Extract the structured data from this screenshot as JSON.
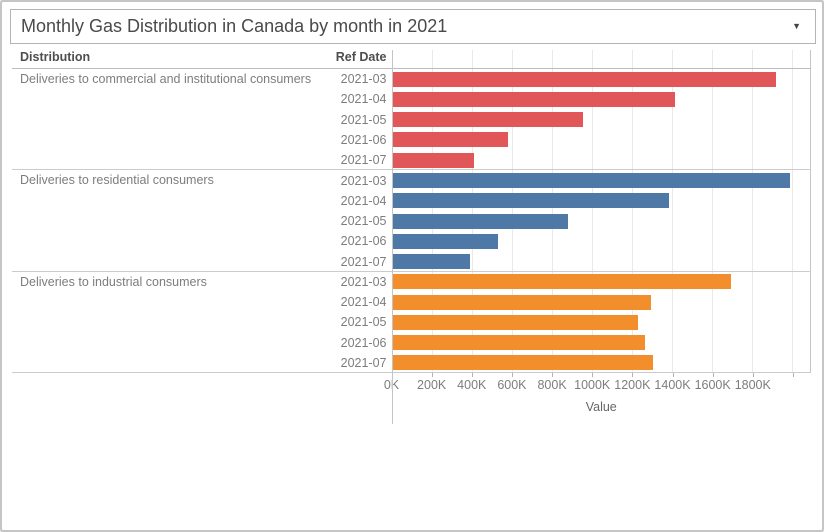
{
  "header": {
    "title": "Monthly Gas Distribution in Canada by month in 2021"
  },
  "table": {
    "col1_header": "Distribution",
    "col2_header": "Ref Date"
  },
  "axis": {
    "label": "Value",
    "tick_labels": [
      "0K",
      "200K",
      "400K",
      "600K",
      "800K",
      "1000K",
      "1200K",
      "1400K",
      "1600K",
      "1800K"
    ],
    "tick_step_k": 200,
    "gridline_count": 11,
    "axis_max_k": 2090
  },
  "colors": {
    "commercial_bar": "#e15759",
    "residential_bar": "#4e79a7",
    "industrial_bar": "#f28e2b",
    "grid_line": "#e9e9e9",
    "pane_border": "#c4c4c4",
    "label_text": "#7d7d7d"
  },
  "chart_data": {
    "type": "bar",
    "orientation": "horizontal",
    "title": "Monthly Gas Distribution in Canada by month in 2021",
    "xlabel": "Value",
    "unit": "thousands (K)",
    "xlim_k": [
      0,
      2090
    ],
    "x_tick_labels": [
      "0K",
      "200K",
      "400K",
      "600K",
      "800K",
      "1000K",
      "1200K",
      "1400K",
      "1600K",
      "1800K"
    ],
    "grid": true,
    "categories": [
      "2021-03",
      "2021-04",
      "2021-05",
      "2021-06",
      "2021-07"
    ],
    "series": [
      {
        "name": "Deliveries to commercial and institutional consumers",
        "color": "#e15759",
        "values_k": [
          1915,
          1410,
          950,
          580,
          410
        ]
      },
      {
        "name": "Deliveries to residential consumers",
        "color": "#4e79a7",
        "values_k": [
          1985,
          1380,
          875,
          530,
          390
        ]
      },
      {
        "name": "Deliveries to industrial consumers",
        "color": "#f28e2b",
        "values_k": [
          1690,
          1290,
          1225,
          1260,
          1300
        ]
      }
    ]
  }
}
